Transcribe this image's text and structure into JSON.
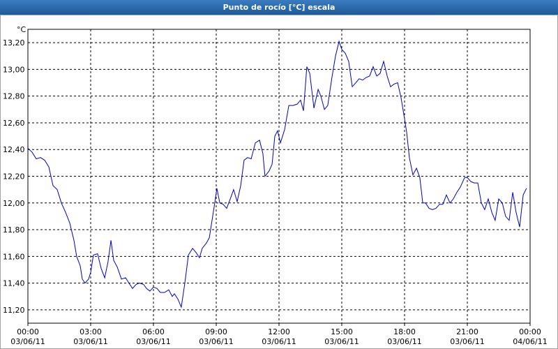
{
  "chart_data": {
    "type": "line",
    "title": "Punto de rocío [°C] escala",
    "y_unit": "°C",
    "x": [
      0,
      0.2,
      0.4,
      0.6,
      0.8,
      1.0,
      1.2,
      1.4,
      1.6,
      1.8,
      2.0,
      2.2,
      2.33,
      2.5,
      2.6,
      2.73,
      2.9,
      3.0,
      3.13,
      3.33,
      3.5,
      3.67,
      3.83,
      3.97,
      4.1,
      4.27,
      4.47,
      4.67,
      4.83,
      5.0,
      5.17,
      5.33,
      5.53,
      5.67,
      5.83,
      6.0,
      6.17,
      6.33,
      6.53,
      6.73,
      6.9,
      7.0,
      7.17,
      7.33,
      7.5,
      7.67,
      7.87,
      8.03,
      8.2,
      8.33,
      8.53,
      8.67,
      8.83,
      8.93,
      9.03,
      9.17,
      9.33,
      9.5,
      9.67,
      9.83,
      10.0,
      10.17,
      10.33,
      10.5,
      10.67,
      10.87,
      11.07,
      11.23,
      11.33,
      11.53,
      11.67,
      11.8,
      11.93,
      12.07,
      12.27,
      12.47,
      12.67,
      12.87,
      13.03,
      13.17,
      13.33,
      13.47,
      13.67,
      13.87,
      14.0,
      14.17,
      14.33,
      14.53,
      14.7,
      14.87,
      15.0,
      15.17,
      15.33,
      15.5,
      15.67,
      15.83,
      16.0,
      16.17,
      16.33,
      16.5,
      16.67,
      16.83,
      17.0,
      17.17,
      17.33,
      17.5,
      17.67,
      17.83,
      18.0,
      18.1,
      18.23,
      18.4,
      18.57,
      18.73,
      18.87,
      19.0,
      19.17,
      19.33,
      19.5,
      19.67,
      19.83,
      20.0,
      20.17,
      20.33,
      20.5,
      20.67,
      20.87,
      21.0,
      21.17,
      21.33,
      21.5,
      21.67,
      21.83,
      22.0,
      22.17,
      22.33,
      22.5,
      22.67,
      22.83,
      23.0,
      23.17,
      23.33,
      23.5,
      23.67,
      23.83
    ],
    "values": [
      12.41,
      12.38,
      12.33,
      12.34,
      12.32,
      12.27,
      12.13,
      12.1,
      12.0,
      11.93,
      11.85,
      11.72,
      11.6,
      11.53,
      11.43,
      11.4,
      11.43,
      11.48,
      11.61,
      11.62,
      11.51,
      11.44,
      11.56,
      11.72,
      11.57,
      11.52,
      11.43,
      11.44,
      11.4,
      11.36,
      11.39,
      11.4,
      11.39,
      11.36,
      11.34,
      11.37,
      11.36,
      11.33,
      11.33,
      11.35,
      11.3,
      11.32,
      11.28,
      11.22,
      11.4,
      11.61,
      11.66,
      11.63,
      11.59,
      11.66,
      11.7,
      11.74,
      11.9,
      12.0,
      12.11,
      12.0,
      11.99,
      11.96,
      12.03,
      12.1,
      12.01,
      12.13,
      12.32,
      12.34,
      12.33,
      12.45,
      12.47,
      12.37,
      12.2,
      12.24,
      12.29,
      12.5,
      12.54,
      12.45,
      12.55,
      12.73,
      12.73,
      12.74,
      12.77,
      12.69,
      13.02,
      12.97,
      12.71,
      12.85,
      12.8,
      12.7,
      12.73,
      12.94,
      13.1,
      13.21,
      13.15,
      13.12,
      13.06,
      12.87,
      12.9,
      12.93,
      12.92,
      12.94,
      12.95,
      13.02,
      12.95,
      12.97,
      13.06,
      12.95,
      12.87,
      12.89,
      12.9,
      12.79,
      12.63,
      12.53,
      12.34,
      12.21,
      12.26,
      12.19,
      12.0,
      12.0,
      11.96,
      11.95,
      11.96,
      11.99,
      11.99,
      12.06,
      12.0,
      12.03,
      12.08,
      12.12,
      12.19,
      12.19,
      12.16,
      12.15,
      12.15,
      12.0,
      11.95,
      12.03,
      11.93,
      11.87,
      12.03,
      12.0,
      11.9,
      11.87,
      12.08,
      11.93,
      11.82,
      12.06,
      12.11
    ],
    "color": "#0000c8",
    "xlim": [
      0,
      24
    ],
    "xticks": [
      {
        "value": 0,
        "label": "00:00\n03/06/11"
      },
      {
        "value": 3,
        "label": "03:00\n03/06/11"
      },
      {
        "value": 6,
        "label": "06:00\n03/06/11"
      },
      {
        "value": 9,
        "label": "09:00\n03/06/11"
      },
      {
        "value": 12,
        "label": "12:00\n03/06/11"
      },
      {
        "value": 15,
        "label": "15:00\n03/06/11"
      },
      {
        "value": 18,
        "label": "18:00\n03/06/11"
      },
      {
        "value": 21,
        "label": "21:00\n03/06/11"
      },
      {
        "value": 24,
        "label": "00:00\n04/06/11"
      }
    ],
    "ylim": [
      11.1,
      13.3
    ],
    "yticks": [
      {
        "value": 11.2,
        "label": "11,20"
      },
      {
        "value": 11.4,
        "label": "11,40"
      },
      {
        "value": 11.6,
        "label": "11,60"
      },
      {
        "value": 11.8,
        "label": "11,80"
      },
      {
        "value": 12.0,
        "label": "12,00"
      },
      {
        "value": 12.2,
        "label": "12,20"
      },
      {
        "value": 12.4,
        "label": "12,40"
      },
      {
        "value": 12.6,
        "label": "12,60"
      },
      {
        "value": 12.8,
        "label": "12,80"
      },
      {
        "value": 13.0,
        "label": "13,00"
      },
      {
        "value": 13.2,
        "label": "13,20"
      }
    ],
    "grid": true
  }
}
